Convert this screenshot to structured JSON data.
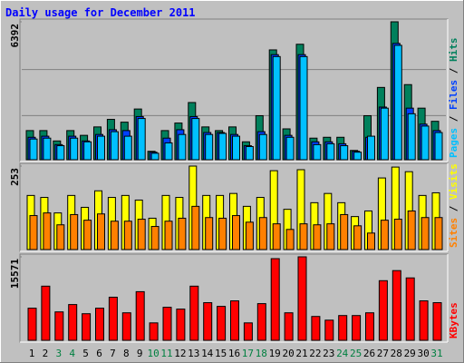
{
  "title": "Daily usage for December 2011",
  "legend_separator": " / ",
  "chart_data": [
    {
      "type": "bar",
      "ylim": [
        0,
        6392
      ],
      "yticks": [
        6392
      ],
      "series": [
        {
          "name": "Hits",
          "color": "#00805c",
          "values": [
            1350,
            1350,
            870,
            1350,
            1130,
            1520,
            1870,
            1740,
            2350,
            390,
            1350,
            1700,
            2650,
            1520,
            1350,
            1520,
            830,
            2040,
            5090,
            1430,
            5350,
            1000,
            1040,
            1040,
            430,
            2040,
            3350,
            6392,
            3480,
            2390,
            1780
          ]
        },
        {
          "name": "Files",
          "color": "#0040ff",
          "values": [
            1040,
            1090,
            700,
            1090,
            870,
            1170,
            1390,
            1350,
            2000,
            350,
            1000,
            1390,
            2000,
            1260,
            1260,
            1170,
            650,
            1300,
            4870,
            1130,
            4870,
            830,
            830,
            740,
            390,
            1040,
            2440,
            5390,
            2390,
            1650,
            1350
          ]
        },
        {
          "name": "Pages",
          "color": "#00c0ff",
          "values": [
            960,
            1000,
            650,
            1000,
            830,
            1090,
            1300,
            1090,
            1910,
            300,
            780,
            1170,
            1910,
            1170,
            1220,
            1090,
            610,
            1170,
            4780,
            1040,
            4780,
            700,
            740,
            650,
            350,
            1090,
            2390,
            5300,
            2130,
            1560,
            1260
          ]
        }
      ]
    },
    {
      "type": "bar",
      "ylim": [
        0,
        253
      ],
      "yticks": [
        253
      ],
      "series": [
        {
          "name": "Visits",
          "color": "#ffff00",
          "values": [
            164,
            158,
            111,
            164,
            128,
            178,
            158,
            164,
            150,
            95,
            164,
            158,
            253,
            164,
            164,
            170,
            131,
            158,
            239,
            122,
            242,
            142,
            170,
            142,
            100,
            117,
            217,
            250,
            236,
            164,
            172
          ]
        },
        {
          "name": "Sites",
          "color": "#ff8000",
          "values": [
            103,
            111,
            75,
            106,
            89,
            108,
            86,
            86,
            92,
            70,
            86,
            95,
            131,
            97,
            95,
            103,
            83,
            97,
            78,
            61,
            78,
            75,
            78,
            106,
            72,
            50,
            89,
            92,
            117,
            97,
            97
          ]
        }
      ]
    },
    {
      "type": "bar",
      "ylim": [
        0,
        15571
      ],
      "yticks": [
        15571
      ],
      "categories": [
        "1",
        "2",
        "3",
        "4",
        "5",
        "6",
        "7",
        "8",
        "9",
        "10",
        "11",
        "12",
        "13",
        "14",
        "15",
        "16",
        "17",
        "18",
        "19",
        "20",
        "21",
        "22",
        "23",
        "24",
        "25",
        "26",
        "27",
        "28",
        "29",
        "30",
        "31"
      ],
      "category_colors": [
        "#000000",
        "#000000",
        "#008040",
        "#008040",
        "#000000",
        "#000000",
        "#000000",
        "#000000",
        "#000000",
        "#008040",
        "#008040",
        "#000000",
        "#000000",
        "#000000",
        "#000000",
        "#000000",
        "#008040",
        "#008040",
        "#000000",
        "#000000",
        "#000000",
        "#000000",
        "#000000",
        "#008040",
        "#008040",
        "#000000",
        "#000000",
        "#000000",
        "#000000",
        "#000000",
        "#008040"
      ],
      "series": [
        {
          "name": "KBytes",
          "color": "#ff0000",
          "values": [
            5990,
            10100,
            5300,
            6670,
            4960,
            5990,
            8040,
            5130,
            9070,
            3250,
            6160,
            5820,
            10100,
            7020,
            6330,
            7360,
            3250,
            6840,
            15230,
            5130,
            15571,
            4450,
            3760,
            4620,
            4620,
            5130,
            11120,
            13000,
            11640,
            7360,
            7020
          ]
        }
      ]
    }
  ]
}
